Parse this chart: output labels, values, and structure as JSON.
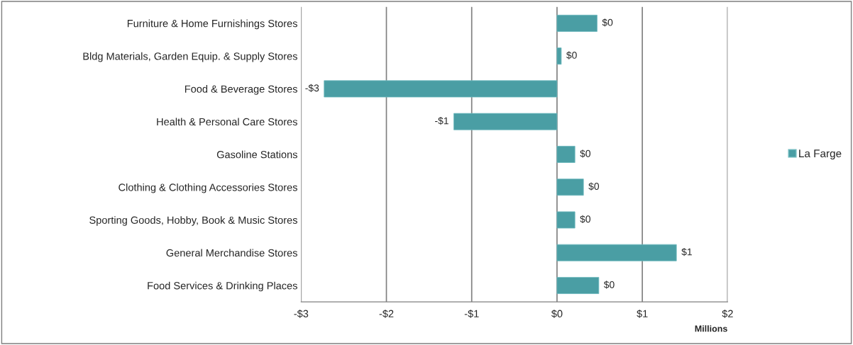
{
  "chart_data": {
    "type": "bar",
    "orientation": "horizontal",
    "xlabel": "Millions",
    "categories": [
      "Furniture & Home Furnishings Stores",
      "Bldg Materials, Garden Equip. & Supply Stores",
      "Food & Beverage Stores",
      "Health & Personal Care Stores",
      "Gasoline Stations",
      "Clothing & Clothing Accessories Stores",
      "Sporting Goods, Hobby, Book & Music Stores",
      "General Merchandise Stores",
      "Food Services & Drinking Places"
    ],
    "series": [
      {
        "name": "La Farge",
        "color": "#4a9ea4",
        "values": [
          0.47,
          0.05,
          -2.73,
          -1.21,
          0.21,
          0.31,
          0.21,
          1.4,
          0.49
        ],
        "value_labels": [
          "$0",
          "$0",
          "-$3",
          "-$1",
          "$0",
          "$0",
          "$0",
          "$1",
          "$0"
        ]
      }
    ],
    "xlim": [
      -3,
      2
    ],
    "xticks": [
      {
        "value": -3,
        "label": "-$3"
      },
      {
        "value": -2,
        "label": "-$2"
      },
      {
        "value": -1,
        "label": "-$1"
      },
      {
        "value": 0,
        "label": "$0"
      },
      {
        "value": 1,
        "label": "$1"
      },
      {
        "value": 2,
        "label": "$2"
      }
    ],
    "grid": "x",
    "legend": "right"
  }
}
